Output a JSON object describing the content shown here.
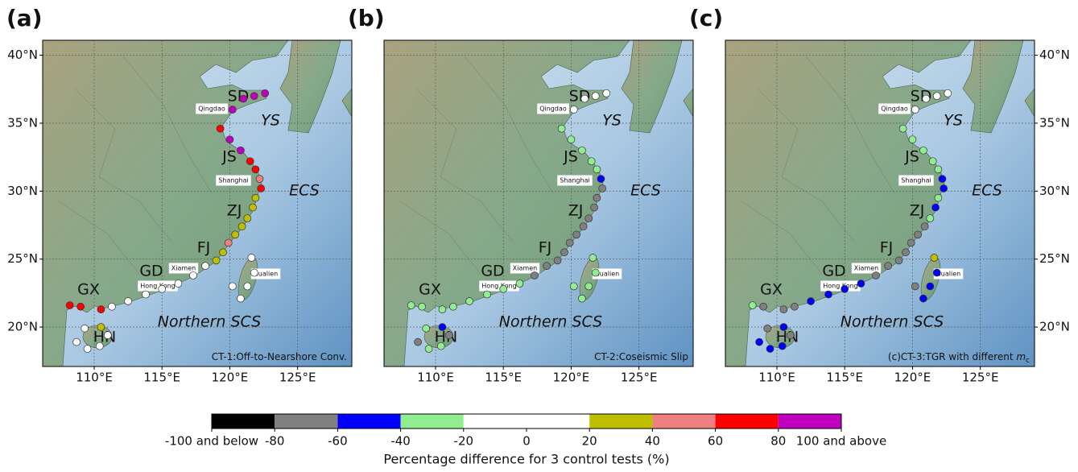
{
  "panels": [
    {
      "label": "(a)",
      "annotation": "CT-1:Off-to-Nearshore Conv.",
      "values": [
        85,
        110,
        110,
        110,
        70,
        110,
        110,
        70,
        70,
        50,
        70,
        30,
        30,
        30,
        30,
        30,
        50,
        30,
        30,
        0,
        0,
        0,
        0,
        0,
        0,
        0,
        70,
        70,
        70,
        30,
        0,
        0,
        0,
        0,
        0,
        0,
        0,
        0,
        0,
        0
      ]
    },
    {
      "label": "(b)",
      "annotation": "CT-2:Coseismic Slip",
      "values": [
        0,
        0,
        0,
        0,
        -30,
        -30,
        -30,
        -30,
        -30,
        -50,
        -70,
        -70,
        -70,
        -70,
        -70,
        -70,
        -70,
        -70,
        -70,
        -70,
        -70,
        -30,
        -30,
        -30,
        -30,
        -30,
        -30,
        -30,
        -30,
        -50,
        -70,
        -30,
        -30,
        -70,
        -30,
        -30,
        -30,
        -30,
        -30,
        -30
      ]
    },
    {
      "label": "(c)",
      "annotation": "(c)CT-3:TGR with different ",
      "annotation_italic": "m",
      "annotation_sub": "c",
      "values": [
        0,
        0,
        0,
        0,
        -30,
        -30,
        -30,
        -30,
        -30,
        -50,
        -50,
        -30,
        -50,
        -30,
        -70,
        -70,
        -70,
        -70,
        -70,
        -70,
        -70,
        -50,
        -50,
        -50,
        -50,
        -70,
        -70,
        -70,
        -30,
        -50,
        -70,
        -50,
        -50,
        -50,
        -70,
        30,
        -50,
        -50,
        -50,
        -70
      ]
    }
  ],
  "stations": [
    [
      122.6,
      37.2
    ],
    [
      121.8,
      37.0
    ],
    [
      121.0,
      36.8
    ],
    [
      120.2,
      36.0
    ],
    [
      119.3,
      34.6
    ],
    [
      120.0,
      33.8
    ],
    [
      120.8,
      33.0
    ],
    [
      121.5,
      32.2
    ],
    [
      121.9,
      31.6
    ],
    [
      122.2,
      30.9
    ],
    [
      122.3,
      30.2
    ],
    [
      121.9,
      29.5
    ],
    [
      121.7,
      28.8
    ],
    [
      121.3,
      28.0
    ],
    [
      120.9,
      27.4
    ],
    [
      120.4,
      26.8
    ],
    [
      119.9,
      26.2
    ],
    [
      119.5,
      25.5
    ],
    [
      119.0,
      24.9
    ],
    [
      118.2,
      24.5
    ],
    [
      117.3,
      23.8
    ],
    [
      116.2,
      23.2
    ],
    [
      115.0,
      22.8
    ],
    [
      113.8,
      22.4
    ],
    [
      112.5,
      21.9
    ],
    [
      111.3,
      21.5
    ],
    [
      110.5,
      21.3
    ],
    [
      109.0,
      21.5
    ],
    [
      108.2,
      21.6
    ],
    [
      110.5,
      20.0
    ],
    [
      111.0,
      19.4
    ],
    [
      110.4,
      18.6
    ],
    [
      109.5,
      18.4
    ],
    [
      108.7,
      18.9
    ],
    [
      109.3,
      19.9
    ],
    [
      121.6,
      25.1
    ],
    [
      121.8,
      24.0
    ],
    [
      121.3,
      23.0
    ],
    [
      120.8,
      22.1
    ],
    [
      120.2,
      23.0
    ]
  ],
  "lonlim": [
    106.2,
    129.0
  ],
  "latlim": [
    17.1,
    41.1
  ],
  "lon_ticks": [
    {
      "value": 110,
      "label": "110°E"
    },
    {
      "value": 115,
      "label": "115°E"
    },
    {
      "value": 120,
      "label": "120°E"
    },
    {
      "value": 125,
      "label": "125°E"
    }
  ],
  "lat_ticks": [
    {
      "value": 20,
      "label": "20°N"
    },
    {
      "value": 25,
      "label": "25°N"
    },
    {
      "value": 30,
      "label": "30°N"
    },
    {
      "value": 35,
      "label": "35°N"
    },
    {
      "value": 40,
      "label": "40°N"
    }
  ],
  "regions": [
    "SD",
    "YS",
    "JS",
    "ECS",
    "ZJ",
    "FJ",
    "GD",
    "GX",
    "HN",
    "Northern SCS"
  ],
  "cities": [
    "Qingdao",
    "Shanghai",
    "Xiamen",
    "Hong Kong",
    "Hualien"
  ],
  "colorbar": {
    "ticks": [
      {
        "value": -100,
        "label": "-100 and below"
      },
      -80,
      -60,
      -40,
      -20,
      0,
      20,
      40,
      60,
      80,
      {
        "value": 100,
        "label": "100 and above"
      }
    ],
    "colors": [
      "#000000",
      "#808080",
      "#0000ff",
      "#90ee90",
      "#ffffff",
      "#ffffff",
      "#bfbf00",
      "#f08080",
      "#ff0000",
      "#bf00bf"
    ],
    "label": "Percentage difference for 3 control tests (%)"
  }
}
